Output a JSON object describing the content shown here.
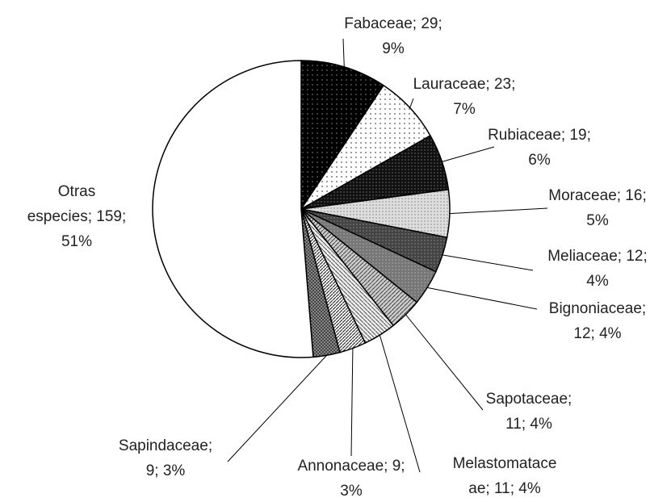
{
  "chart_data": {
    "type": "pie",
    "values": [
      29,
      23,
      19,
      16,
      12,
      12,
      11,
      11,
      9,
      9,
      159
    ],
    "value_labels": [
      [
        "Fabaceae; 29;",
        "9%"
      ],
      [
        "Lauraceae; 23;",
        "7%"
      ],
      [
        "Rubiaceae; 19;",
        "6%"
      ],
      [
        "Moraceae; 16;",
        "5%"
      ],
      [
        "Meliaceae; 12;",
        "4%"
      ],
      [
        "Bignoniaceae;",
        "12; 4%"
      ],
      [
        "Sapotaceae;",
        "11; 4%"
      ],
      [
        "Melastomatace",
        "ae; 11; 4%"
      ],
      [
        "Annonaceae; 9;",
        "3%"
      ],
      [
        "Sapindaceae;",
        "9; 3%"
      ],
      [
        "Otras",
        "especies; 159;",
        "51%"
      ]
    ]
  }
}
